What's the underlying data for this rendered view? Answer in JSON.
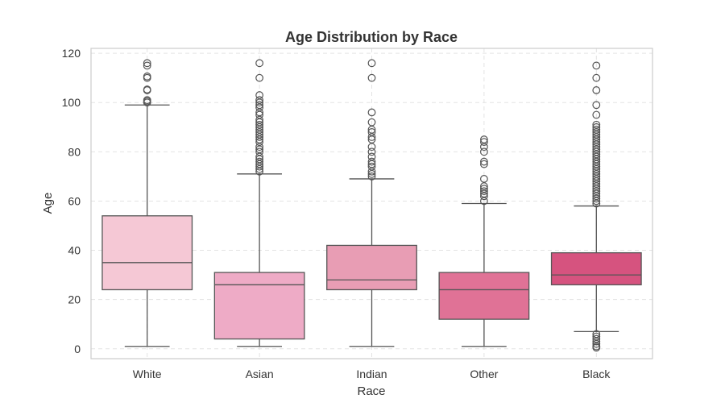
{
  "chart_data": {
    "type": "box",
    "title": "Age Distribution by Race",
    "xlabel": "Race",
    "ylabel": "Age",
    "ylim": [
      -4,
      122
    ],
    "yticks": [
      0,
      20,
      40,
      60,
      80,
      100,
      120
    ],
    "grid": true,
    "categories": [
      "White",
      "Asian",
      "Indian",
      "Other",
      "Black"
    ],
    "colors": [
      "#f5c8d5",
      "#eeabc6",
      "#e89db4",
      "#e07296",
      "#d6537f"
    ],
    "boxes": [
      {
        "category": "White",
        "whisker_low": 1,
        "q1": 24,
        "median": 35,
        "q3": 54,
        "whisker_high": 99,
        "outliers": [
          100,
          100.5,
          101,
          105,
          105.3,
          110,
          110.6,
          115,
          116
        ]
      },
      {
        "category": "Asian",
        "whisker_low": 1,
        "q1": 4,
        "median": 26,
        "q3": 31,
        "whisker_high": 71,
        "outliers": [
          72,
          73,
          74,
          75,
          76,
          77,
          78,
          80,
          81,
          82,
          84,
          85,
          86,
          87,
          88,
          89,
          90,
          91,
          92,
          93,
          95,
          96,
          98,
          99,
          100,
          101,
          103,
          110,
          116
        ]
      },
      {
        "category": "Indian",
        "whisker_low": 1,
        "q1": 24,
        "median": 28,
        "q3": 42,
        "whisker_high": 69,
        "outliers": [
          70,
          71,
          72,
          74,
          75,
          76,
          78,
          80,
          82,
          85,
          86,
          88,
          89,
          92,
          96,
          110,
          116
        ]
      },
      {
        "category": "Other",
        "whisker_low": 1,
        "q1": 12,
        "median": 24,
        "q3": 31,
        "whisker_high": 59,
        "outliers": [
          60,
          62,
          63,
          64,
          65,
          66,
          69,
          75,
          76,
          80,
          82,
          84,
          85
        ]
      },
      {
        "category": "Black",
        "whisker_low": 7,
        "q1": 26,
        "median": 30,
        "q3": 39,
        "whisker_high": 58,
        "outliers": [
          0.5,
          1,
          2,
          3,
          4,
          5,
          6,
          59,
          60,
          61,
          62,
          63,
          64,
          65,
          66,
          67,
          68,
          69,
          70,
          71,
          72,
          73,
          74,
          75,
          76,
          77,
          78,
          79,
          80,
          81,
          82,
          83,
          84,
          85,
          86,
          87,
          88,
          89,
          90,
          91,
          95,
          99,
          105,
          110,
          115
        ]
      }
    ]
  }
}
